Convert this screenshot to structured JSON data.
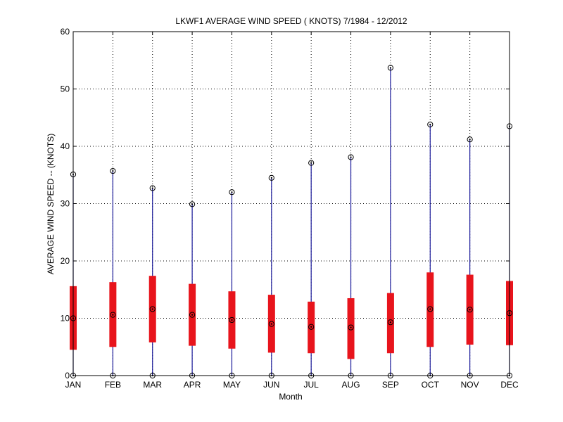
{
  "chart_data": {
    "type": "box",
    "title": "LKWF1  AVERAGE WIND SPEED ( KNOTS) 7/1984 - 12/2012",
    "xlabel": "Month",
    "ylabel": "AVERAGE WIND SPEED -- (KNOTS)",
    "ylim": [
      0,
      60
    ],
    "yticks": [
      0,
      10,
      20,
      30,
      40,
      50,
      60
    ],
    "grid": true,
    "categories": [
      "JAN",
      "FEB",
      "MAR",
      "APR",
      "MAY",
      "JUN",
      "JUL",
      "AUG",
      "SEP",
      "OCT",
      "NOV",
      "DEC"
    ],
    "series": [
      {
        "min": [
          0,
          0,
          0,
          0,
          0,
          0,
          0,
          0,
          0,
          0,
          0,
          0
        ],
        "q1": [
          4.5,
          5.0,
          5.8,
          5.2,
          4.7,
          4.0,
          3.9,
          2.9,
          3.9,
          5.0,
          5.4,
          5.3
        ],
        "mean": [
          10.0,
          10.6,
          11.6,
          10.6,
          9.7,
          9.0,
          8.5,
          8.4,
          9.3,
          11.6,
          11.5,
          10.9
        ],
        "q3": [
          15.6,
          16.3,
          17.4,
          16.0,
          14.7,
          14.1,
          12.9,
          13.5,
          14.4,
          18.0,
          17.6,
          16.5
        ],
        "max": [
          35.1,
          35.7,
          32.7,
          29.9,
          32.0,
          34.5,
          37.1,
          38.1,
          53.7,
          43.8,
          41.2,
          43.5
        ]
      }
    ],
    "colors": {
      "whisker": "#1a1a9a",
      "box": "#e8141c",
      "marker": "#000000",
      "grid": "#000000"
    }
  }
}
